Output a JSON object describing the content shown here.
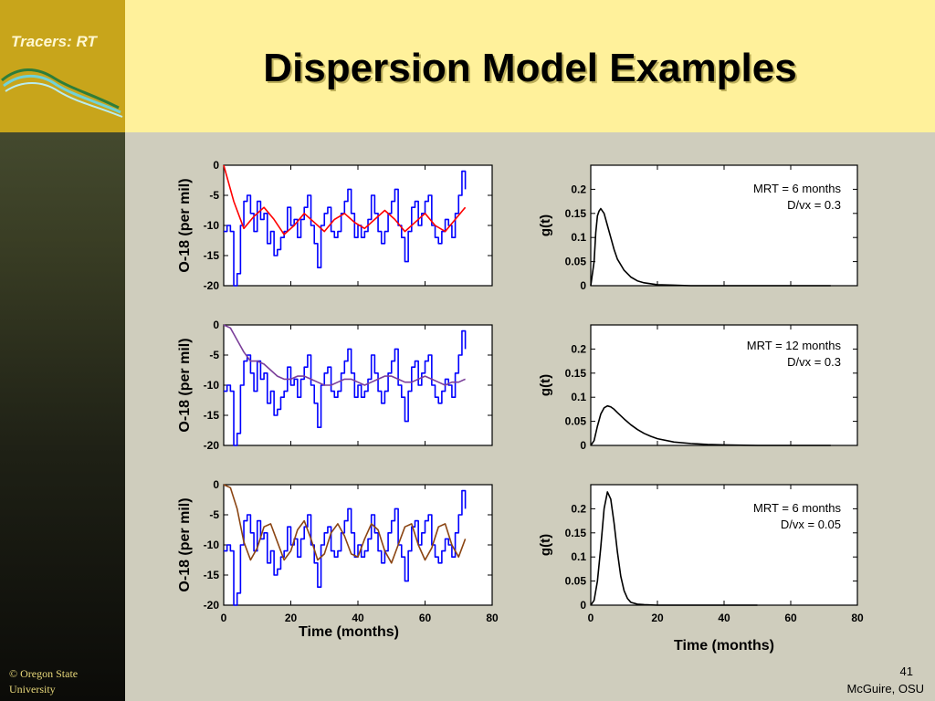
{
  "header": {
    "title": "Dispersion Model Examples",
    "brand": "Tracers: RT"
  },
  "footer": {
    "copyright": "© Oregon State University",
    "page_number": "41",
    "author": "McGuire, OSU"
  },
  "chart_data": [
    {
      "type": "line",
      "id": "o18-1",
      "ylabel": "O-18 (per mil)",
      "xlabel": "",
      "xlim": [
        0,
        80
      ],
      "ylim": [
        -20,
        0
      ],
      "yticks": [
        "0",
        "-5",
        "-10",
        "-15",
        "-20"
      ],
      "xticks": [],
      "series": [
        {
          "color": "#0000ff",
          "step": true,
          "x": [
            0,
            1,
            2,
            3,
            4,
            5,
            6,
            7,
            8,
            9,
            10,
            11,
            12,
            13,
            14,
            15,
            16,
            17,
            18,
            19,
            20,
            21,
            22,
            23,
            24,
            25,
            26,
            27,
            28,
            29,
            30,
            31,
            32,
            33,
            34,
            35,
            36,
            37,
            38,
            39,
            40,
            41,
            42,
            43,
            44,
            45,
            46,
            47,
            48,
            49,
            50,
            51,
            52,
            53,
            54,
            55,
            56,
            57,
            58,
            59,
            60,
            61,
            62,
            63,
            64,
            65,
            66,
            67,
            68,
            69,
            70,
            71,
            72
          ],
          "y": [
            -11,
            -10,
            -11,
            -20,
            -18,
            -10,
            -6,
            -5,
            -8,
            -11,
            -6,
            -9,
            -8,
            -13,
            -11,
            -15,
            -14,
            -12,
            -11,
            -7,
            -10,
            -9,
            -12,
            -9,
            -7,
            -5,
            -10,
            -13,
            -17,
            -10,
            -8,
            -7,
            -11,
            -12,
            -11,
            -8,
            -6,
            -4,
            -8,
            -12,
            -10,
            -12,
            -11,
            -9,
            -5,
            -8,
            -11,
            -13,
            -11,
            -8,
            -6,
            -4,
            -10,
            -12,
            -16,
            -11,
            -7,
            -6,
            -10,
            -8,
            -6,
            -5,
            -10,
            -12,
            -13,
            -11,
            -9,
            -10,
            -12,
            -8,
            -5,
            -1,
            -4
          ]
        },
        {
          "color": "#ff0000",
          "x": [
            0,
            3,
            6,
            9,
            12,
            15,
            18,
            21,
            24,
            27,
            30,
            33,
            36,
            39,
            42,
            45,
            48,
            51,
            54,
            57,
            60,
            63,
            66,
            69,
            72
          ],
          "y": [
            0,
            -6,
            -10.5,
            -8.5,
            -7,
            -9,
            -11.5,
            -10,
            -8,
            -9.5,
            -11,
            -9,
            -8,
            -9.5,
            -10.5,
            -9,
            -7.5,
            -9,
            -11,
            -9.5,
            -8,
            -10,
            -11,
            -9,
            -7
          ]
        }
      ]
    },
    {
      "type": "line",
      "id": "g-1",
      "ylabel": "g(t)",
      "xlabel": "",
      "xlim": [
        0,
        80
      ],
      "ylim": [
        0,
        0.25
      ],
      "yticks": [
        "0",
        "0.05",
        "0.1",
        "0.15",
        "0.2"
      ],
      "xticks": [],
      "annotation": [
        "MRT = 6 months",
        "D/vx = 0.3"
      ],
      "series": [
        {
          "color": "#000000",
          "x": [
            0,
            1,
            1.5,
            2,
            2.5,
            3,
            4,
            5,
            6,
            7,
            8,
            10,
            12,
            14,
            16,
            20,
            25,
            30,
            40,
            50,
            60,
            72
          ],
          "y": [
            0,
            0.05,
            0.11,
            0.145,
            0.155,
            0.16,
            0.15,
            0.125,
            0.1,
            0.075,
            0.055,
            0.032,
            0.018,
            0.01,
            0.006,
            0.002,
            0.001,
            0,
            0,
            0,
            0,
            0
          ]
        }
      ]
    },
    {
      "type": "line",
      "id": "o18-2",
      "ylabel": "O-18 (per mil)",
      "xlabel": "",
      "xlim": [
        0,
        80
      ],
      "ylim": [
        -20,
        0
      ],
      "yticks": [
        "0",
        "-5",
        "-10",
        "-15",
        "-20"
      ],
      "xticks": [],
      "series": [
        {
          "color": "#0000ff",
          "step": true,
          "x": [
            0,
            1,
            2,
            3,
            4,
            5,
            6,
            7,
            8,
            9,
            10,
            11,
            12,
            13,
            14,
            15,
            16,
            17,
            18,
            19,
            20,
            21,
            22,
            23,
            24,
            25,
            26,
            27,
            28,
            29,
            30,
            31,
            32,
            33,
            34,
            35,
            36,
            37,
            38,
            39,
            40,
            41,
            42,
            43,
            44,
            45,
            46,
            47,
            48,
            49,
            50,
            51,
            52,
            53,
            54,
            55,
            56,
            57,
            58,
            59,
            60,
            61,
            62,
            63,
            64,
            65,
            66,
            67,
            68,
            69,
            70,
            71,
            72
          ],
          "y": [
            -11,
            -10,
            -11,
            -20,
            -18,
            -10,
            -6,
            -5,
            -8,
            -11,
            -6,
            -9,
            -8,
            -13,
            -11,
            -15,
            -14,
            -12,
            -11,
            -7,
            -10,
            -9,
            -12,
            -9,
            -7,
            -5,
            -10,
            -13,
            -17,
            -10,
            -8,
            -7,
            -11,
            -12,
            -11,
            -8,
            -6,
            -4,
            -8,
            -12,
            -10,
            -12,
            -11,
            -9,
            -5,
            -8,
            -11,
            -13,
            -11,
            -8,
            -6,
            -4,
            -10,
            -12,
            -16,
            -11,
            -7,
            -6,
            -10,
            -8,
            -6,
            -5,
            -10,
            -12,
            -13,
            -11,
            -9,
            -10,
            -12,
            -8,
            -5,
            -1,
            -4
          ]
        },
        {
          "color": "#7b3f9a",
          "x": [
            0,
            2,
            4,
            6,
            8,
            10,
            12,
            14,
            16,
            18,
            20,
            22,
            24,
            26,
            28,
            30,
            32,
            34,
            36,
            38,
            40,
            42,
            44,
            46,
            48,
            50,
            52,
            54,
            56,
            58,
            60,
            62,
            64,
            66,
            68,
            70,
            72
          ],
          "y": [
            0,
            -0.5,
            -2.5,
            -4.5,
            -6,
            -6,
            -6.5,
            -7.5,
            -8.5,
            -9,
            -9,
            -8.5,
            -8.5,
            -9,
            -9.5,
            -10,
            -10,
            -9.5,
            -9,
            -9,
            -9.5,
            -10,
            -9.5,
            -9,
            -8.5,
            -8.5,
            -9,
            -9.5,
            -9.5,
            -9,
            -8.5,
            -9,
            -9.5,
            -10,
            -9.5,
            -9.5,
            -9
          ]
        }
      ]
    },
    {
      "type": "line",
      "id": "g-2",
      "ylabel": "g(t)",
      "xlabel": "",
      "xlim": [
        0,
        80
      ],
      "ylim": [
        0,
        0.25
      ],
      "yticks": [
        "0",
        "0.05",
        "0.1",
        "0.15",
        "0.2"
      ],
      "xticks": [],
      "annotation": [
        "MRT = 12 months",
        "D/vx = 0.3"
      ],
      "series": [
        {
          "color": "#000000",
          "x": [
            0,
            1,
            2,
            3,
            4,
            5,
            6,
            7,
            8,
            10,
            12,
            14,
            16,
            18,
            20,
            25,
            30,
            35,
            40,
            50,
            60,
            72
          ],
          "y": [
            0,
            0.01,
            0.04,
            0.065,
            0.078,
            0.082,
            0.08,
            0.075,
            0.068,
            0.055,
            0.043,
            0.033,
            0.025,
            0.019,
            0.014,
            0.007,
            0.004,
            0.002,
            0.001,
            0,
            0,
            0
          ]
        }
      ]
    },
    {
      "type": "line",
      "id": "o18-3",
      "ylabel": "O-18 (per mil)",
      "xlabel": "Time (months)",
      "xlim": [
        0,
        80
      ],
      "ylim": [
        -20,
        0
      ],
      "yticks": [
        "0",
        "-5",
        "-10",
        "-15",
        "-20"
      ],
      "xticks": [
        "0",
        "20",
        "40",
        "60",
        "80"
      ],
      "series": [
        {
          "color": "#0000ff",
          "step": true,
          "x": [
            0,
            1,
            2,
            3,
            4,
            5,
            6,
            7,
            8,
            9,
            10,
            11,
            12,
            13,
            14,
            15,
            16,
            17,
            18,
            19,
            20,
            21,
            22,
            23,
            24,
            25,
            26,
            27,
            28,
            29,
            30,
            31,
            32,
            33,
            34,
            35,
            36,
            37,
            38,
            39,
            40,
            41,
            42,
            43,
            44,
            45,
            46,
            47,
            48,
            49,
            50,
            51,
            52,
            53,
            54,
            55,
            56,
            57,
            58,
            59,
            60,
            61,
            62,
            63,
            64,
            65,
            66,
            67,
            68,
            69,
            70,
            71,
            72
          ],
          "y": [
            -11,
            -10,
            -11,
            -20,
            -18,
            -10,
            -6,
            -5,
            -8,
            -11,
            -6,
            -9,
            -8,
            -13,
            -11,
            -15,
            -14,
            -12,
            -11,
            -7,
            -10,
            -9,
            -12,
            -9,
            -7,
            -5,
            -10,
            -13,
            -17,
            -10,
            -8,
            -7,
            -11,
            -12,
            -11,
            -8,
            -6,
            -4,
            -8,
            -12,
            -10,
            -12,
            -11,
            -9,
            -5,
            -8,
            -11,
            -13,
            -11,
            -8,
            -6,
            -4,
            -10,
            -12,
            -16,
            -11,
            -7,
            -6,
            -10,
            -8,
            -6,
            -5,
            -10,
            -12,
            -13,
            -11,
            -9,
            -10,
            -12,
            -8,
            -5,
            -1,
            -4
          ]
        },
        {
          "color": "#8b4513",
          "x": [
            0,
            2,
            4,
            6,
            8,
            10,
            12,
            14,
            16,
            18,
            20,
            22,
            24,
            26,
            28,
            30,
            32,
            34,
            36,
            38,
            40,
            42,
            44,
            46,
            48,
            50,
            52,
            54,
            56,
            58,
            60,
            62,
            64,
            66,
            68,
            70,
            72
          ],
          "y": [
            0,
            -0.5,
            -4,
            -9.5,
            -12.5,
            -10.5,
            -7,
            -6.5,
            -9.5,
            -12.5,
            -11,
            -7.5,
            -6,
            -9,
            -12.5,
            -11.5,
            -8,
            -6.5,
            -8.5,
            -11.5,
            -12,
            -9,
            -6.5,
            -7.5,
            -11,
            -13,
            -10,
            -7,
            -6.5,
            -10,
            -12.5,
            -10.5,
            -7,
            -6.5,
            -10,
            -12,
            -9
          ]
        }
      ]
    },
    {
      "type": "line",
      "id": "g-3",
      "ylabel": "g(t)",
      "xlabel": "Time (months)",
      "xlim": [
        0,
        80
      ],
      "ylim": [
        0,
        0.25
      ],
      "yticks": [
        "0",
        "0.05",
        "0.1",
        "0.15",
        "0.2"
      ],
      "xticks": [
        "0",
        "20",
        "40",
        "60",
        "80"
      ],
      "annotation": [
        "MRT = 6 months",
        "D/vx = 0.05"
      ],
      "series": [
        {
          "color": "#000000",
          "x": [
            0,
            1,
            2,
            3,
            4,
            5,
            6,
            7,
            8,
            9,
            10,
            11,
            12,
            14,
            16,
            20,
            30,
            40,
            50
          ],
          "y": [
            0,
            0.01,
            0.05,
            0.12,
            0.2,
            0.235,
            0.22,
            0.17,
            0.11,
            0.06,
            0.03,
            0.014,
            0.006,
            0.002,
            0.001,
            0,
            0,
            0,
            0
          ]
        }
      ]
    }
  ]
}
